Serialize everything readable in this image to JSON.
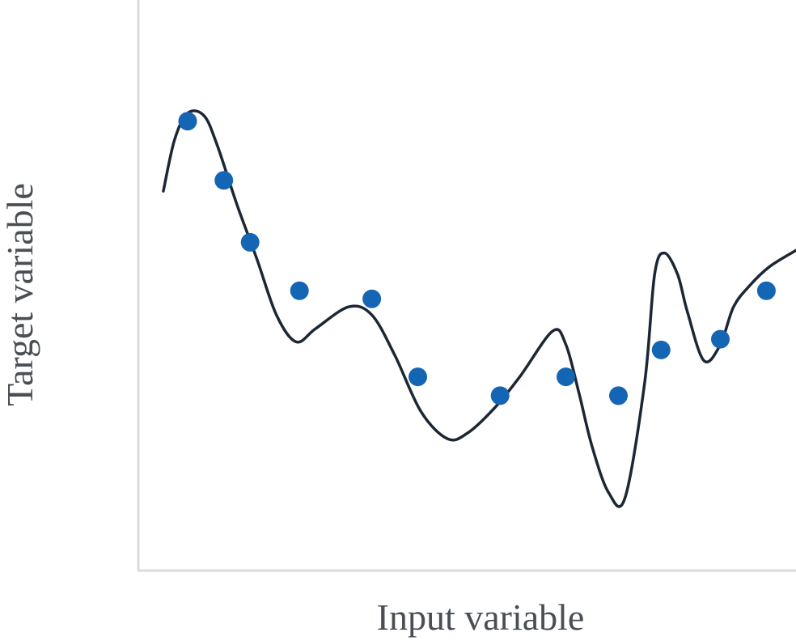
{
  "chart_data": {
    "type": "scatter",
    "title": "",
    "xlabel": "Input variable",
    "ylabel": "Target variable",
    "xlim": [
      0,
      10
    ],
    "ylim": [
      0,
      10
    ],
    "grid": false,
    "legend": "none",
    "ticks": false,
    "series": [
      {
        "kind": "scatter",
        "color": "#1565b5",
        "x": [
          0.75,
          1.3,
          1.7,
          2.45,
          3.55,
          4.25,
          5.5,
          6.5,
          7.3,
          7.95,
          8.85,
          9.55
        ],
        "y": [
          8.35,
          7.25,
          6.1,
          5.2,
          5.05,
          3.6,
          3.25,
          3.6,
          3.25,
          4.1,
          4.3,
          5.2
        ]
      },
      {
        "kind": "line",
        "color": "#1c2733",
        "x": [
          0.38,
          0.55,
          0.75,
          1.0,
          1.2,
          1.5,
          1.8,
          2.1,
          2.4,
          2.7,
          3.2,
          3.55,
          3.9,
          4.3,
          4.7,
          5.0,
          5.4,
          5.8,
          6.3,
          6.5,
          6.7,
          6.9,
          7.15,
          7.4,
          7.7,
          7.85,
          8.0,
          8.2,
          8.35,
          8.6,
          8.85,
          9.05,
          9.3,
          9.6,
          10.0
        ],
        "y": [
          7.05,
          8.0,
          8.5,
          8.45,
          7.9,
          6.8,
          5.8,
          4.75,
          4.25,
          4.5,
          4.9,
          4.75,
          4.0,
          2.95,
          2.45,
          2.55,
          3.0,
          3.6,
          4.45,
          4.2,
          3.3,
          2.3,
          1.45,
          1.35,
          3.5,
          5.5,
          5.9,
          5.5,
          4.8,
          3.9,
          4.2,
          4.9,
          5.3,
          5.65,
          5.95
        ]
      }
    ]
  },
  "colors": {
    "axis": "#d9dcdf",
    "marker": "#1565b5",
    "curve": "#1c2733"
  }
}
